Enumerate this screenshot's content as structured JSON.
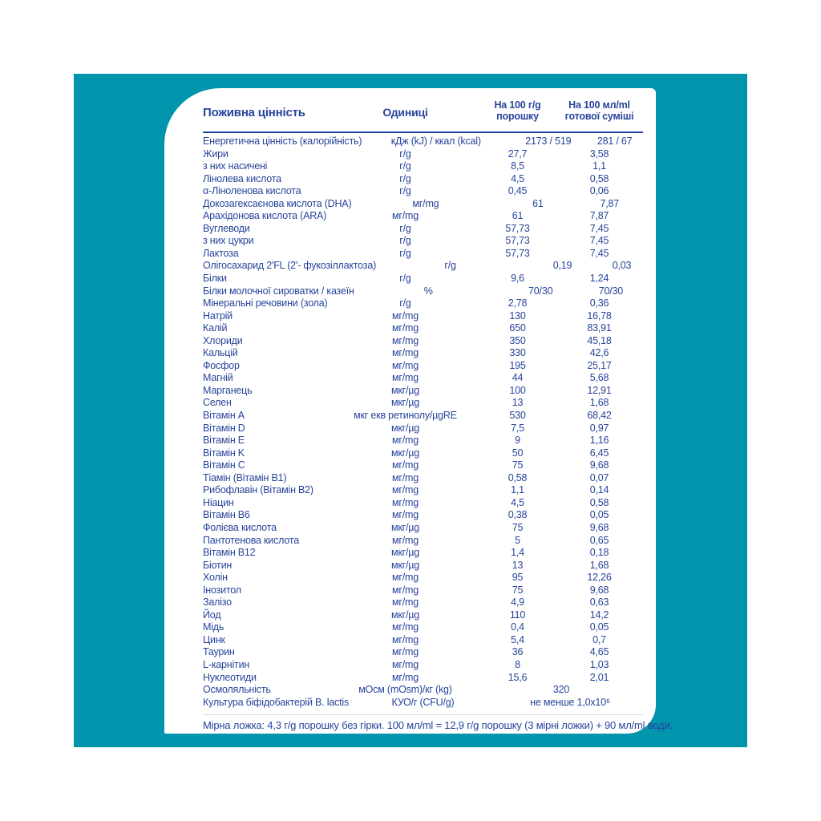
{
  "page": {
    "background_color": "#ffffff",
    "panel_color": "#0095ac",
    "card_color": "#ffffff",
    "text_color": "#27449b"
  },
  "table": {
    "headers": {
      "nutrition": "Поживна цінність",
      "units": "Одиниці",
      "per100g_line1": "На 100 г/g",
      "per100g_line2": "порошку",
      "per100ml_line1": "На 100 мл/ml",
      "per100ml_line2": "готової суміші"
    },
    "rows": [
      {
        "label": "Енергетична цінність (калорійність)",
        "unit": "кДж (kJ) / ккал (kcal)",
        "per100g": "2173 / 519",
        "per100ml": "281 / 67"
      },
      {
        "label": "Жири",
        "unit": "г/g",
        "per100g": "27,7",
        "per100ml": "3,58"
      },
      {
        "label": "з них насичені",
        "unit": "г/g",
        "per100g": "8,5",
        "per100ml": "1,1"
      },
      {
        "label": "Лінолева кислота",
        "unit": "г/g",
        "per100g": "4,5",
        "per100ml": "0,58"
      },
      {
        "label": "α-Ліноленова кислота",
        "unit": "г/g",
        "per100g": "0,45",
        "per100ml": "0,06"
      },
      {
        "label": "Докозагексаєнова кислота (DHA)",
        "unit": "мг/mg",
        "per100g": "61",
        "per100ml": "7,87"
      },
      {
        "label": "Арахідонова кислота (ARA)",
        "unit": "мг/mg",
        "per100g": "61",
        "per100ml": "7,87"
      },
      {
        "label": "Вуглеводи",
        "unit": "г/g",
        "per100g": "57,73",
        "per100ml": "7,45"
      },
      {
        "label": "з них цукри",
        "unit": "г/g",
        "per100g": "57,73",
        "per100ml": "7,45"
      },
      {
        "label": "Лактоза",
        "unit": "г/g",
        "per100g": "57,73",
        "per100ml": "7,45"
      },
      {
        "label": "Олігосахарид 2'FL (2'- фукозіллактоза)",
        "unit": "г/g",
        "per100g": "0,19",
        "per100ml": "0,03"
      },
      {
        "label": "Білки",
        "unit": "г/g",
        "per100g": "9,6",
        "per100ml": "1,24"
      },
      {
        "label": "Білки молочної сироватки / казеїн",
        "unit": "%",
        "per100g": "70/30",
        "per100ml": "70/30"
      },
      {
        "label": "Мінеральні речовини (зола)",
        "unit": "г/g",
        "per100g": "2,78",
        "per100ml": "0,36"
      },
      {
        "label": "Натрій",
        "unit": "мг/mg",
        "per100g": "130",
        "per100ml": "16,78"
      },
      {
        "label": "Калій",
        "unit": "мг/mg",
        "per100g": "650",
        "per100ml": "83,91"
      },
      {
        "label": "Хлориди",
        "unit": "мг/mg",
        "per100g": "350",
        "per100ml": "45,18"
      },
      {
        "label": "Кальцій",
        "unit": "мг/mg",
        "per100g": "330",
        "per100ml": "42,6"
      },
      {
        "label": "Фосфор",
        "unit": "мг/mg",
        "per100g": "195",
        "per100ml": "25,17"
      },
      {
        "label": "Магній",
        "unit": "мг/mg",
        "per100g": "44",
        "per100ml": "5,68"
      },
      {
        "label": "Марганець",
        "unit": "мкг/µg",
        "per100g": "100",
        "per100ml": "12,91"
      },
      {
        "label": "Селен",
        "unit": "мкг/µg",
        "per100g": "13",
        "per100ml": "1,68"
      },
      {
        "label": "Вітамін A",
        "unit": "мкг екв ретинолу/µgRE",
        "per100g": "530",
        "per100ml": "68,42"
      },
      {
        "label": "Вітамін D",
        "unit": "мкг/µg",
        "per100g": "7,5",
        "per100ml": "0,97"
      },
      {
        "label": "Вітамін E",
        "unit": "мг/mg",
        "per100g": "9",
        "per100ml": "1,16"
      },
      {
        "label": "Вітамін K",
        "unit": "мкг/µg",
        "per100g": "50",
        "per100ml": "6,45"
      },
      {
        "label": "Вітамін C",
        "unit": "мг/mg",
        "per100g": "75",
        "per100ml": "9,68"
      },
      {
        "label": "Тіамін (Вітамін B1)",
        "unit": "мг/mg",
        "per100g": "0,58",
        "per100ml": "0,07"
      },
      {
        "label": "Рибофлавін (Вітамін B2)",
        "unit": "мг/mg",
        "per100g": "1,1",
        "per100ml": "0,14"
      },
      {
        "label": "Ніацин",
        "unit": "мг/mg",
        "per100g": "4,5",
        "per100ml": "0,58"
      },
      {
        "label": "Вітамін B6",
        "unit": "мг/mg",
        "per100g": "0,38",
        "per100ml": "0,05"
      },
      {
        "label": "Фолієва кислота",
        "unit": "мкг/µg",
        "per100g": "75",
        "per100ml": "9,68"
      },
      {
        "label": "Пантотенова кислота",
        "unit": "мг/mg",
        "per100g": "5",
        "per100ml": "0,65"
      },
      {
        "label": "Вітамін B12",
        "unit": "мкг/µg",
        "per100g": "1,4",
        "per100ml": "0,18"
      },
      {
        "label": "Біотин",
        "unit": "мкг/µg",
        "per100g": "13",
        "per100ml": "1,68"
      },
      {
        "label": "Холін",
        "unit": "мг/mg",
        "per100g": "95",
        "per100ml": "12,26"
      },
      {
        "label": "Інозитол",
        "unit": "мг/mg",
        "per100g": "75",
        "per100ml": "9,68"
      },
      {
        "label": "Залізо",
        "unit": "мг/mg",
        "per100g": "4,9",
        "per100ml": "0,63"
      },
      {
        "label": "Йод",
        "unit": "мкг/µg",
        "per100g": "110",
        "per100ml": "14,2"
      },
      {
        "label": "Мідь",
        "unit": "мг/mg",
        "per100g": "0,4",
        "per100ml": "0,05"
      },
      {
        "label": "Цинк",
        "unit": "мг/mg",
        "per100g": "5,4",
        "per100ml": "0,7"
      },
      {
        "label": "Таурин",
        "unit": "мг/mg",
        "per100g": "36",
        "per100ml": "4,65"
      },
      {
        "label": "L-карнітин",
        "unit": "мг/mg",
        "per100g": "8",
        "per100ml": "1,03"
      },
      {
        "label": "Нуклеотиди",
        "unit": "мг/mg",
        "per100g": "15,6",
        "per100ml": "2,01"
      },
      {
        "label": "Осмоляльність",
        "unit": "мОсм (mOsm)/кг (kg)",
        "value": "320",
        "span": true
      },
      {
        "label": "Культура біфідобактерій B. lactis",
        "unit": "КУО/г (CFU/g)",
        "value": "не менше 1,0x10⁶",
        "span": true
      }
    ],
    "footnote": "Мірна ложка: 4,3 г/g порошку без гірки. 100 мл/ml = 12,9 г/g порошку (3 мірні ложки) + 90 мл/ml води."
  }
}
